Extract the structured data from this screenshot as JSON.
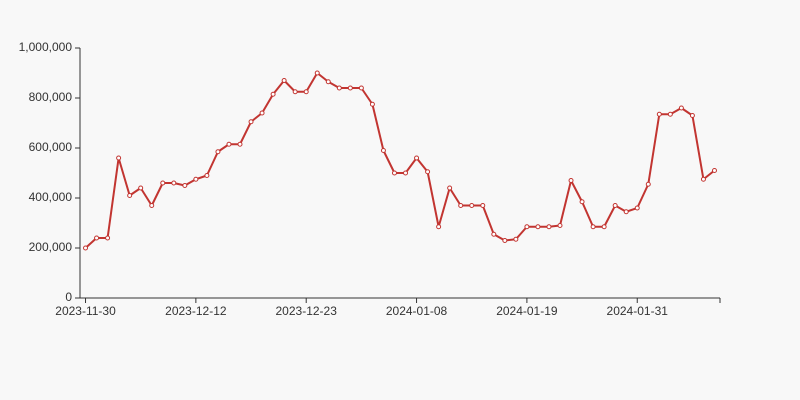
{
  "chart_data": {
    "type": "line",
    "categories": [
      "2023-11-30",
      null,
      null,
      null,
      null,
      null,
      null,
      null,
      null,
      null,
      "2023-12-12",
      null,
      null,
      null,
      null,
      null,
      null,
      null,
      null,
      null,
      "2023-12-23",
      null,
      null,
      null,
      null,
      null,
      null,
      null,
      null,
      null,
      "2024-01-08",
      null,
      null,
      null,
      null,
      null,
      null,
      null,
      null,
      null,
      "2024-01-19",
      null,
      null,
      null,
      null,
      null,
      null,
      null,
      null,
      null,
      "2024-01-31",
      null,
      null,
      null,
      null,
      null,
      null,
      null
    ],
    "values": [
      200000,
      240000,
      240000,
      560000,
      410000,
      440000,
      370000,
      460000,
      460000,
      450000,
      475000,
      490000,
      585000,
      615000,
      615000,
      705000,
      740000,
      815000,
      870000,
      825000,
      825000,
      900000,
      865000,
      840000,
      840000,
      840000,
      775000,
      590000,
      500000,
      500000,
      560000,
      505000,
      285000,
      440000,
      370000,
      370000,
      370000,
      255000,
      230000,
      235000,
      285000,
      285000,
      285000,
      290000,
      470000,
      385000,
      285000,
      285000,
      370000,
      345000,
      360000,
      455000,
      735000,
      735000,
      760000,
      730000,
      475000,
      510000
    ],
    "color": "#c23531",
    "ylim": [
      0,
      1000000
    ],
    "yticks": [
      0,
      {
        "value": 200000,
        "label": "200,000"
      },
      {
        "value": 400000,
        "label": "400,000"
      },
      {
        "value": 600000,
        "label": "600,000"
      },
      {
        "value": 800000,
        "label": "800,000"
      },
      {
        "value": 1000000,
        "label": "1,000,000"
      }
    ]
  }
}
